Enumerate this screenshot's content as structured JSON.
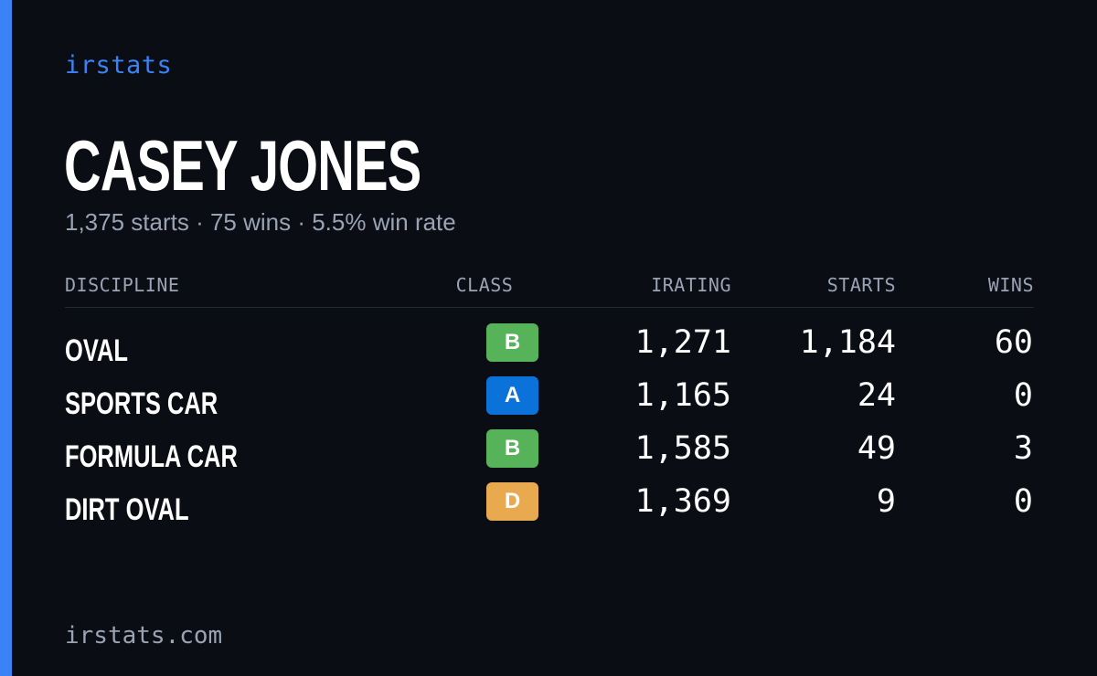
{
  "brand": "irstats",
  "driver": {
    "name": "CASEY JONES",
    "summary": "1,375 starts · 75 wins · 5.5% win rate"
  },
  "table": {
    "headers": {
      "discipline": "DISCIPLINE",
      "class": "CLASS",
      "irating": "IRATING",
      "starts": "STARTS",
      "wins": "WINS"
    },
    "rows": [
      {
        "discipline": "OVAL",
        "class": "B",
        "class_color": "#57b35a",
        "irating": "1,271",
        "starts": "1,184",
        "wins": "60"
      },
      {
        "discipline": "SPORTS CAR",
        "class": "A",
        "class_color": "#0b72d9",
        "irating": "1,165",
        "starts": "24",
        "wins": "0"
      },
      {
        "discipline": "FORMULA CAR",
        "class": "B",
        "class_color": "#57b35a",
        "irating": "1,585",
        "starts": "49",
        "wins": "3"
      },
      {
        "discipline": "DIRT OVAL",
        "class": "D",
        "class_color": "#e9a94e",
        "irating": "1,369",
        "starts": "9",
        "wins": "0"
      }
    ]
  },
  "footer": "irstats.com",
  "colors": {
    "accent": "#3b82f6",
    "background": "#0a0d14",
    "muted_text": "#9aa3b3"
  }
}
